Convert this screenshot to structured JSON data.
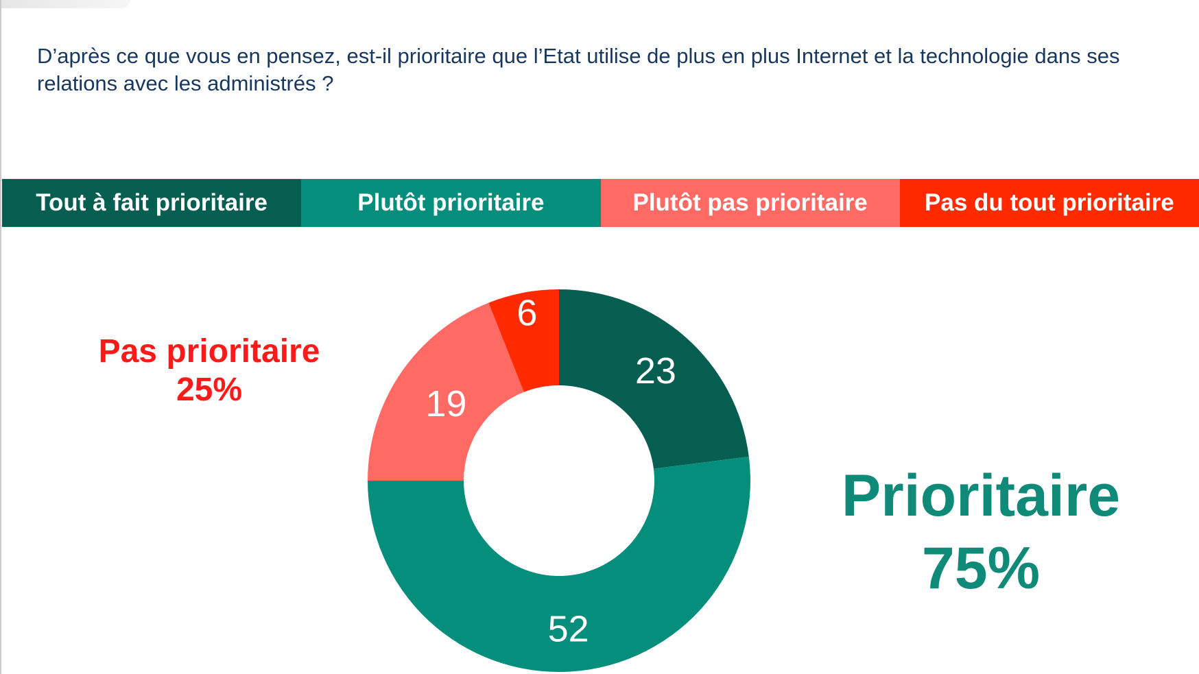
{
  "question": "D’après ce que vous en pensez, est-il prioritaire que l’Etat utilise de plus en plus Internet et la technologie dans ses relations avec les administrés ?",
  "colors": {
    "tout_a_fait": "#065e50",
    "plutot": "#058e7c",
    "plutot_pas": "#ff6b64",
    "pas_du_tout": "#ff2a00",
    "negative_text": "#ff1a1a",
    "positive_text": "#0f8a79",
    "question_text": "#17375e"
  },
  "legend": [
    {
      "label": "Tout à fait prioritaire",
      "color": "#065e50"
    },
    {
      "label": "Plutôt prioritaire",
      "color": "#058e7c"
    },
    {
      "label": "Plutôt pas prioritaire",
      "color": "#ff6b64"
    },
    {
      "label": "Pas du tout prioritaire",
      "color": "#ff2a00"
    }
  ],
  "summary": {
    "negative": {
      "label": "Pas prioritaire",
      "value": "25%"
    },
    "positive": {
      "label": "Prioritaire",
      "value": "75%"
    }
  },
  "chart_data": {
    "type": "pie",
    "donut": true,
    "start": "top",
    "direction": "clockwise",
    "slices": [
      {
        "label": "Tout à fait prioritaire",
        "value": 23,
        "color": "#065e50"
      },
      {
        "label": "Plutôt prioritaire",
        "value": 52,
        "color": "#058e7c"
      },
      {
        "label": "Plutôt pas prioritaire",
        "value": 19,
        "color": "#ff6b64"
      },
      {
        "label": "Pas du tout prioritaire",
        "value": 6,
        "color": "#ff2a00"
      }
    ],
    "data_labels": [
      "23",
      "52",
      "19",
      "6"
    ]
  }
}
